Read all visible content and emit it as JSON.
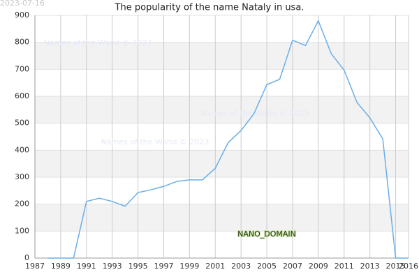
{
  "chart_data": {
    "type": "line",
    "title": "The popularity of the name Nataly in usa.",
    "date": "2023-07-16",
    "watermarks": [
      "Names of the World © 2023",
      "Names of the World © 2023",
      "Names of the World © 2023"
    ],
    "badge": "NANO_DOMAIN",
    "x": [
      1988,
      1989,
      1990,
      1991,
      1992,
      1993,
      1994,
      1995,
      1996,
      1997,
      1998,
      1999,
      2000,
      2001,
      2002,
      2003,
      2004,
      2005,
      2006,
      2007,
      2008,
      2009,
      2010,
      2011,
      2012,
      2013,
      2014,
      2015,
      2016
    ],
    "series": [
      {
        "color": "#6aaee8",
        "values": [
          0,
          0,
          0,
          210,
          222,
          210,
          192,
          243,
          253,
          266,
          284,
          290,
          290,
          333,
          428,
          473,
          535,
          643,
          663,
          808,
          788,
          880,
          758,
          697,
          577,
          520,
          442,
          0,
          0
        ]
      }
    ],
    "xlim": [
      1987,
      2016
    ],
    "xticks": [
      1987,
      1989,
      1991,
      1993,
      1995,
      1997,
      1999,
      2001,
      2003,
      2005,
      2007,
      2009,
      2011,
      2013,
      2015,
      2016
    ],
    "ylim": [
      0,
      900
    ],
    "yticks": [
      0,
      100,
      200,
      300,
      400,
      500,
      600,
      700,
      800,
      900
    ],
    "grid": true,
    "band_color": "#f2f2f2"
  }
}
